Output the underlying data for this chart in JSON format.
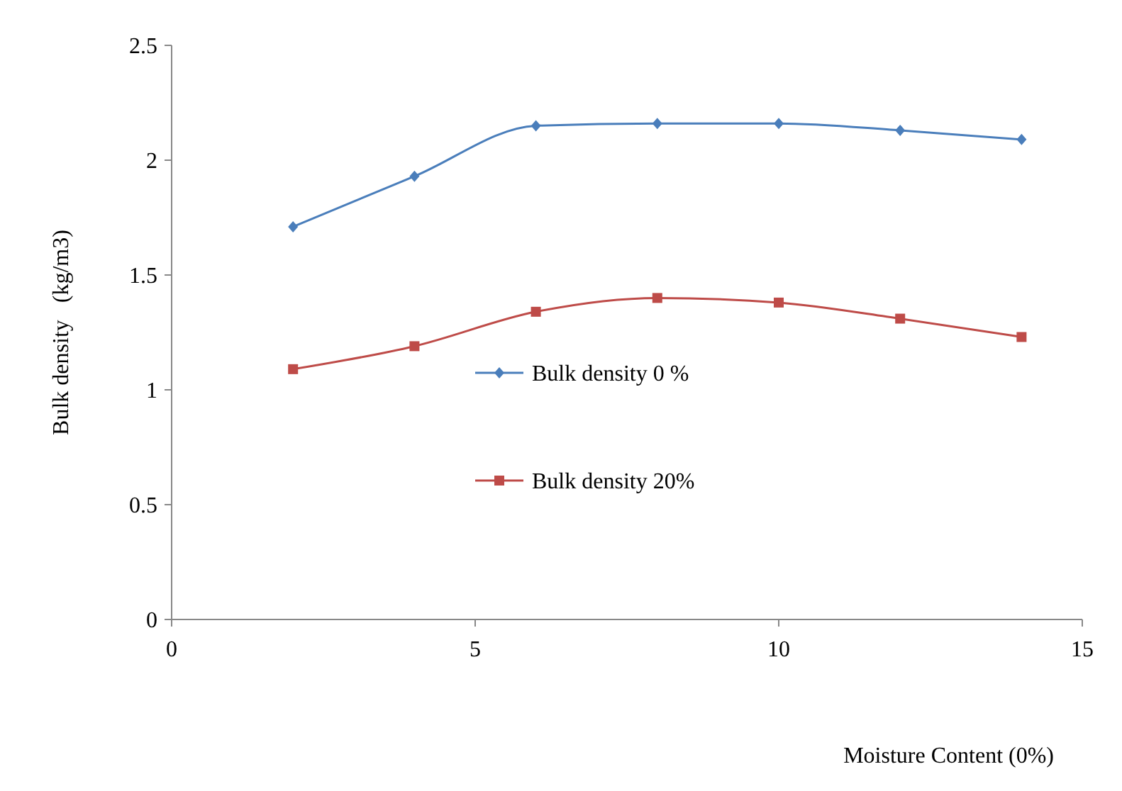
{
  "chart_data": {
    "type": "line",
    "xlabel": "Moisture Content (0%)",
    "ylabel": "Bulk density   (kg/m3)",
    "x": [
      2,
      4,
      6,
      8,
      10,
      12,
      14
    ],
    "series": [
      {
        "name": "Bulk density 0 %",
        "color": "#4a7ebb",
        "marker": "diamond",
        "values": [
          1.71,
          1.93,
          2.15,
          2.16,
          2.16,
          2.13,
          2.09
        ]
      },
      {
        "name": "Bulk density 20%",
        "color": "#be4b48",
        "marker": "square",
        "values": [
          1.09,
          1.19,
          1.34,
          1.4,
          1.38,
          1.31,
          1.23
        ]
      }
    ],
    "xlim": [
      0,
      15
    ],
    "xticks": [
      0,
      5,
      10,
      15
    ],
    "ylim": [
      0,
      2.5
    ],
    "yticks": [
      0,
      0.5,
      1,
      1.5,
      2,
      2.5
    ],
    "grid": false,
    "legend": "center"
  }
}
